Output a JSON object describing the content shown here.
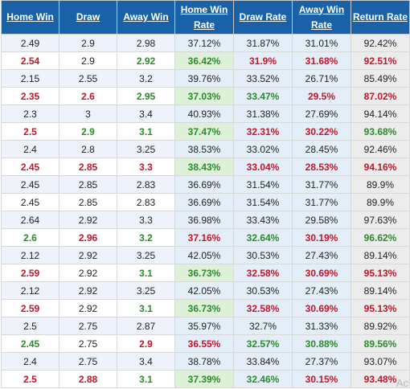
{
  "headers": [
    "Home Win",
    "Draw",
    "Away Win",
    "Home Win Rate",
    "Draw Rate",
    "Away Win Rate",
    "Return Rate"
  ],
  "rows": [
    {
      "cells": [
        "2.49",
        "2.9",
        "2.98",
        "37.12%",
        "31.87%",
        "31.01%",
        "92.42%"
      ],
      "style": [
        "n",
        "n",
        "n",
        "n",
        "n",
        "n",
        "n"
      ]
    },
    {
      "cells": [
        "2.54",
        "2.9",
        "2.92",
        "36.42%",
        "31.9%",
        "31.68%",
        "92.51%"
      ],
      "style": [
        "u",
        "n",
        "d",
        "d",
        "u",
        "u",
        "u"
      ]
    },
    {
      "cells": [
        "2.15",
        "2.55",
        "3.2",
        "39.76%",
        "33.52%",
        "26.71%",
        "85.49%"
      ],
      "style": [
        "n",
        "n",
        "n",
        "n",
        "n",
        "n",
        "n"
      ]
    },
    {
      "cells": [
        "2.35",
        "2.6",
        "2.95",
        "37.03%",
        "33.47%",
        "29.5%",
        "87.02%"
      ],
      "style": [
        "u",
        "u",
        "d",
        "d",
        "d",
        "u",
        "u"
      ]
    },
    {
      "cells": [
        "2.3",
        "3",
        "3.4",
        "40.93%",
        "31.38%",
        "27.69%",
        "94.14%"
      ],
      "style": [
        "n",
        "n",
        "n",
        "n",
        "n",
        "n",
        "n"
      ]
    },
    {
      "cells": [
        "2.5",
        "2.9",
        "3.1",
        "37.47%",
        "32.31%",
        "30.22%",
        "93.68%"
      ],
      "style": [
        "u",
        "d",
        "d",
        "d",
        "u",
        "u",
        "d"
      ]
    },
    {
      "cells": [
        "2.4",
        "2.8",
        "3.25",
        "38.53%",
        "33.02%",
        "28.45%",
        "92.46%"
      ],
      "style": [
        "n",
        "n",
        "n",
        "n",
        "n",
        "n",
        "n"
      ]
    },
    {
      "cells": [
        "2.45",
        "2.85",
        "3.3",
        "38.43%",
        "33.04%",
        "28.53%",
        "94.16%"
      ],
      "style": [
        "u",
        "u",
        "u",
        "d",
        "u",
        "u",
        "u"
      ]
    },
    {
      "cells": [
        "2.45",
        "2.85",
        "2.83",
        "36.69%",
        "31.54%",
        "31.77%",
        "89.9%"
      ],
      "style": [
        "n",
        "n",
        "n",
        "n",
        "n",
        "n",
        "n"
      ]
    },
    {
      "cells": [
        "2.45",
        "2.85",
        "2.83",
        "36.69%",
        "31.54%",
        "31.77%",
        "89.9%"
      ],
      "style": [
        "n",
        "n",
        "n",
        "n",
        "n",
        "n",
        "n"
      ]
    },
    {
      "cells": [
        "2.64",
        "2.92",
        "3.3",
        "36.98%",
        "33.43%",
        "29.58%",
        "97.63%"
      ],
      "style": [
        "n",
        "n",
        "n",
        "n",
        "n",
        "n",
        "n"
      ]
    },
    {
      "cells": [
        "2.6",
        "2.96",
        "3.2",
        "37.16%",
        "32.64%",
        "30.19%",
        "96.62%"
      ],
      "style": [
        "d",
        "u",
        "d",
        "u",
        "d",
        "u",
        "d"
      ]
    },
    {
      "cells": [
        "2.12",
        "2.92",
        "3.25",
        "42.05%",
        "30.53%",
        "27.43%",
        "89.14%"
      ],
      "style": [
        "n",
        "n",
        "n",
        "n",
        "n",
        "n",
        "n"
      ]
    },
    {
      "cells": [
        "2.59",
        "2.92",
        "3.1",
        "36.73%",
        "32.58%",
        "30.69%",
        "95.13%"
      ],
      "style": [
        "u",
        "n",
        "d",
        "d",
        "u",
        "u",
        "u"
      ]
    },
    {
      "cells": [
        "2.12",
        "2.92",
        "3.25",
        "42.05%",
        "30.53%",
        "27.43%",
        "89.14%"
      ],
      "style": [
        "n",
        "n",
        "n",
        "n",
        "n",
        "n",
        "n"
      ]
    },
    {
      "cells": [
        "2.59",
        "2.92",
        "3.1",
        "36.73%",
        "32.58%",
        "30.69%",
        "95.13%"
      ],
      "style": [
        "u",
        "n",
        "d",
        "d",
        "u",
        "u",
        "u"
      ]
    },
    {
      "cells": [
        "2.5",
        "2.75",
        "2.87",
        "35.97%",
        "32.7%",
        "31.33%",
        "89.92%"
      ],
      "style": [
        "n",
        "n",
        "n",
        "n",
        "n",
        "n",
        "n"
      ]
    },
    {
      "cells": [
        "2.45",
        "2.75",
        "2.9",
        "36.55%",
        "32.57%",
        "30.88%",
        "89.56%"
      ],
      "style": [
        "d",
        "n",
        "u",
        "u",
        "d",
        "d",
        "d"
      ]
    },
    {
      "cells": [
        "2.4",
        "2.75",
        "3.4",
        "38.78%",
        "33.84%",
        "27.37%",
        "93.07%"
      ],
      "style": [
        "n",
        "n",
        "n",
        "n",
        "n",
        "n",
        "n"
      ]
    },
    {
      "cells": [
        "2.5",
        "2.88",
        "3.1",
        "37.39%",
        "32.46%",
        "30.15%",
        "93.48%"
      ],
      "style": [
        "u",
        "u",
        "d",
        "d",
        "d",
        "u",
        "u"
      ]
    }
  ],
  "colors": {
    "header_bg": "#1a62a8",
    "up": "#c0182b",
    "down": "#2d8a2d"
  },
  "watermark": "Ac"
}
